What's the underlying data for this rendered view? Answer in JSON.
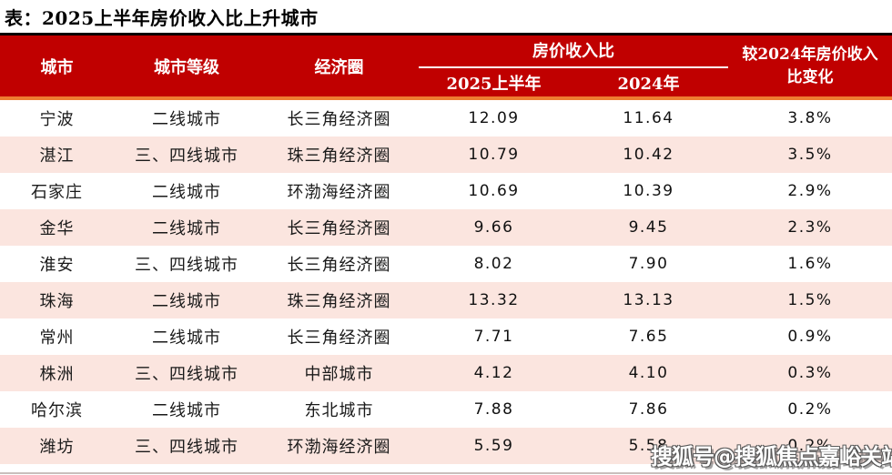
{
  "title": "表：2025上半年房价收入比上升城市",
  "chart_data": {
    "type": "table",
    "title": "表：2025上半年房价收入比上升城市",
    "columns": [
      "城市",
      "城市等级",
      "经济圈",
      "2025上半年",
      "2024年",
      "较2024年房价收入\n比变化"
    ],
    "column_group": {
      "label": "房价收入比",
      "spans": [
        "2025上半年",
        "2024年"
      ]
    },
    "rows": [
      {
        "city": "宁波",
        "tier": "二线城市",
        "region": "长三角经济圈",
        "ratio_2025h1": "12.09",
        "ratio_2024": "11.64",
        "change": "3.8%"
      },
      {
        "city": "湛江",
        "tier": "三、四线城市",
        "region": "珠三角经济圈",
        "ratio_2025h1": "10.79",
        "ratio_2024": "10.42",
        "change": "3.5%"
      },
      {
        "city": "石家庄",
        "tier": "二线城市",
        "region": "环渤海经济圈",
        "ratio_2025h1": "10.69",
        "ratio_2024": "10.39",
        "change": "2.9%"
      },
      {
        "city": "金华",
        "tier": "二线城市",
        "region": "长三角经济圈",
        "ratio_2025h1": "9.66",
        "ratio_2024": "9.45",
        "change": "2.3%"
      },
      {
        "city": "淮安",
        "tier": "三、四线城市",
        "region": "长三角经济圈",
        "ratio_2025h1": "8.02",
        "ratio_2024": "7.90",
        "change": "1.6%"
      },
      {
        "city": "珠海",
        "tier": "二线城市",
        "region": "珠三角经济圈",
        "ratio_2025h1": "13.32",
        "ratio_2024": "13.13",
        "change": "1.5%"
      },
      {
        "city": "常州",
        "tier": "二线城市",
        "region": "长三角经济圈",
        "ratio_2025h1": "7.71",
        "ratio_2024": "7.65",
        "change": "0.9%"
      },
      {
        "city": "株洲",
        "tier": "三、四线城市",
        "region": "中部城市",
        "ratio_2025h1": "4.12",
        "ratio_2024": "4.10",
        "change": "0.3%"
      },
      {
        "city": "哈尔滨",
        "tier": "二线城市",
        "region": "东北城市",
        "ratio_2025h1": "7.88",
        "ratio_2024": "7.86",
        "change": "0.2%"
      },
      {
        "city": "潍坊",
        "tier": "三、四线城市",
        "region": "环渤海经济圈",
        "ratio_2025h1": "5.59",
        "ratio_2024": "5.58",
        "change": "0.2%"
      }
    ]
  },
  "watermark": {
    "text": "搜狐号@搜狐焦点嘉峪关站"
  },
  "colors": {
    "header_bg": "#c00000",
    "header_text": "#ffffff",
    "accent_rule": "#ed7d31",
    "top_rule": "#000000",
    "row_alt_bg": "#fbe5df",
    "body_text": "#1a1a1a",
    "watermark_fill": "#ffffff",
    "watermark_outline": "#5a5a5a"
  }
}
